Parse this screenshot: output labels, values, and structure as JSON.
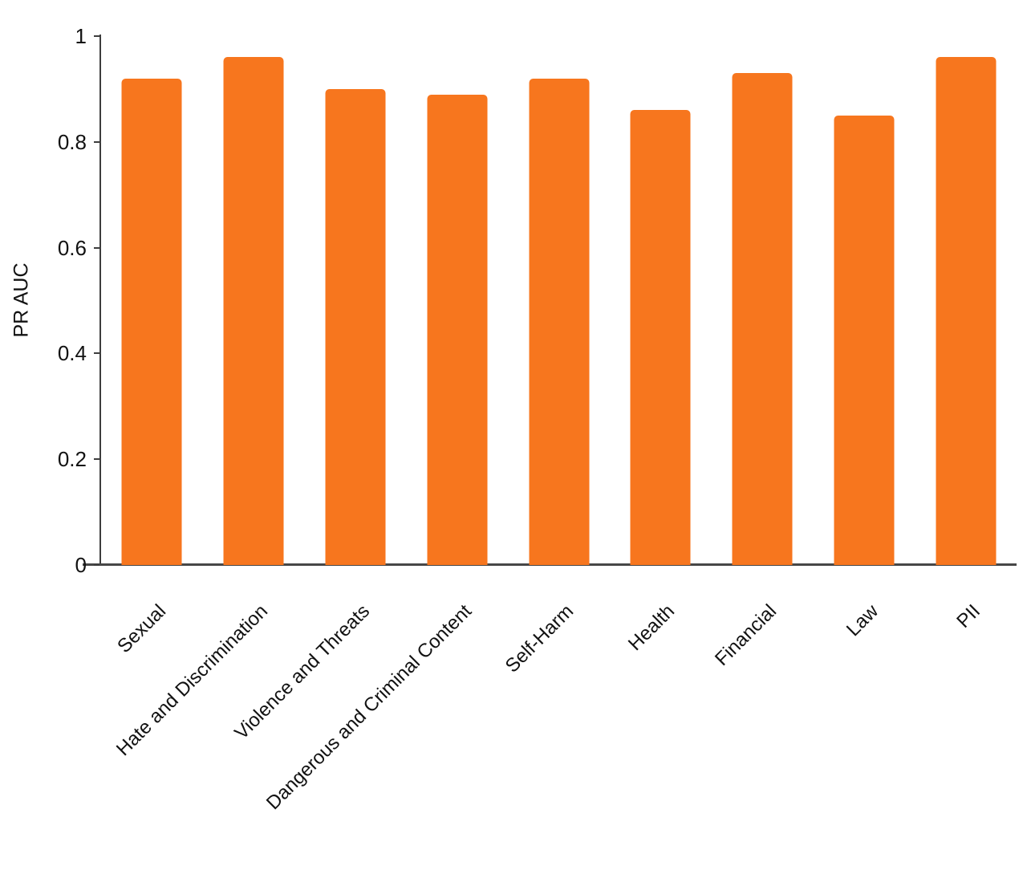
{
  "chart_data": {
    "type": "bar",
    "title": "",
    "categories": [
      "Sexual",
      "Hate and Discrimination",
      "Violence and Threats",
      "Dangerous and Criminal Content",
      "Self-Harm",
      "Health",
      "Financial",
      "Law",
      "PII"
    ],
    "values": [
      0.92,
      0.96,
      0.9,
      0.89,
      0.92,
      0.86,
      0.93,
      0.85,
      0.96
    ],
    "xlabel": "",
    "ylabel": "PR AUC",
    "ylim": [
      0,
      1
    ],
    "yticks": [
      0,
      0.2,
      0.4,
      0.6,
      0.8,
      1
    ],
    "ytick_labels": [
      "0",
      "0.2",
      "0.4",
      "0.6",
      "0.8",
      "1"
    ],
    "grid": false,
    "legend": "none",
    "bar_color": "#F7761E",
    "axis_color": "#3d3d3d",
    "text_color": "#121212",
    "background": "#ffffff"
  }
}
